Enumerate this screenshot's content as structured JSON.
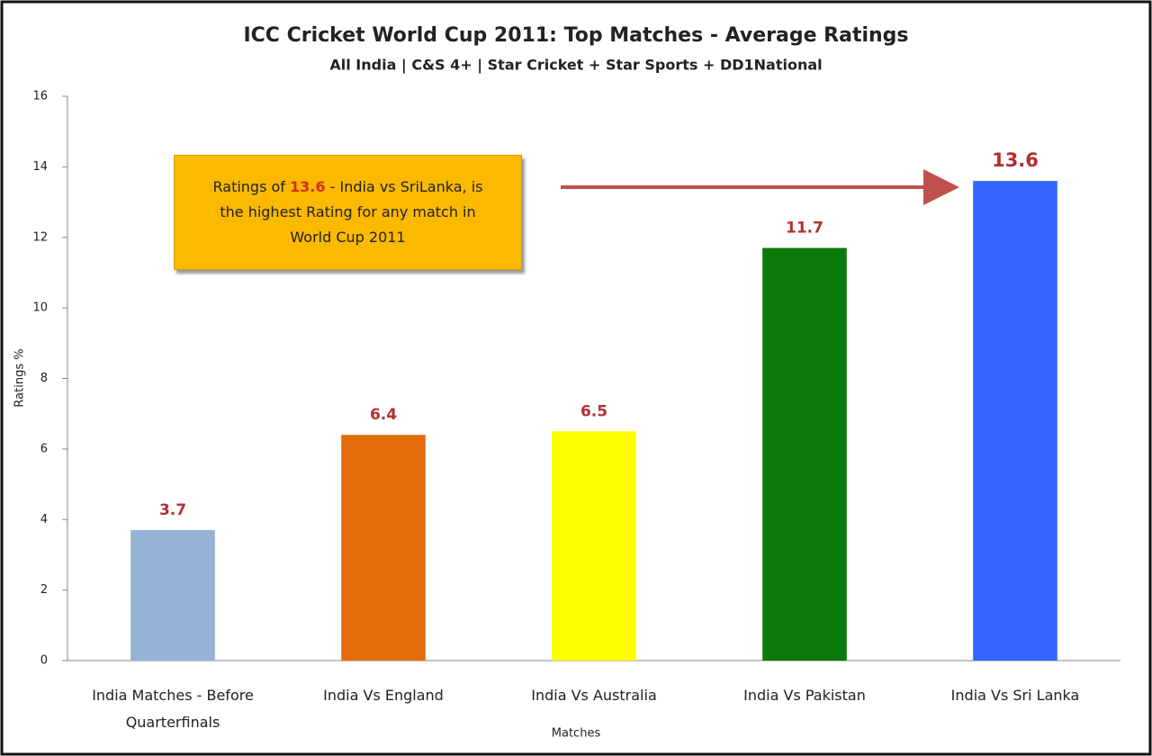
{
  "chart_data": {
    "type": "bar",
    "title": "ICC Cricket World Cup 2011: Top Matches -  Average Ratings",
    "subtitle": "All India | C&S 4+ | Star Cricket + Star Sports + DD1National",
    "x_label": "Matches",
    "y_label": "Ratings %",
    "categories": [
      "India Matches - Before Quarterfinals",
      "India Vs England",
      "India Vs Australia",
      "India Vs Pakistan",
      "India Vs Sri Lanka"
    ],
    "values": [
      3.7,
      6.4,
      6.5,
      11.7,
      13.6
    ],
    "colors": [
      "#95b3d7",
      "#e36c0a",
      "#ffff00",
      "#0b7a0b",
      "#3366ff"
    ],
    "ylim": [
      0,
      16
    ],
    "yticks": [
      0,
      2,
      4,
      6,
      8,
      10,
      12,
      14,
      16
    ],
    "grid": false,
    "annotation": [
      "Ratings of",
      "13.6",
      "- India vs SriLanka,  is the highest Rating for any match in World Cup 2011"
    ]
  }
}
